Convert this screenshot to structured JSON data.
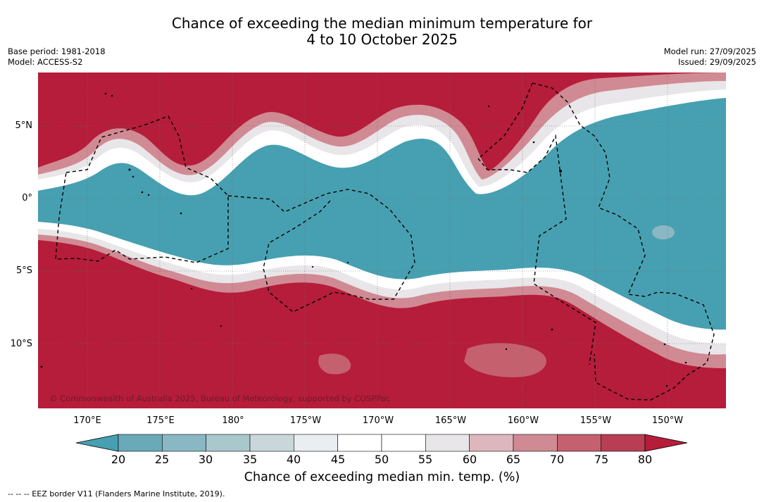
{
  "title": {
    "line1": "Chance of exceeding the median minimum temperature for",
    "line2": "4 to 10 October 2025"
  },
  "meta": {
    "base_period": "Base period: 1981-2018",
    "model": "Model: ACCESS-S2",
    "model_run": "Model run: 27/09/2025",
    "issued": "Issued: 29/09/2025"
  },
  "map": {
    "lat_labels": [
      "5°N",
      "0°",
      "5°S",
      "10°S"
    ],
    "lon_labels": [
      "170°E",
      "175°E",
      "180°",
      "175°W",
      "170°W",
      "165°W",
      "160°W",
      "155°W",
      "150°W"
    ],
    "credit": "© Commonwealth of Australia 2025, Bureau of Meteorology, supported by COSPPac",
    "colors": {
      "high": "#b51d3a",
      "low": "#47a0b1",
      "eez": "#000000"
    }
  },
  "colorbar": {
    "ticks": [
      "20",
      "25",
      "30",
      "35",
      "40",
      "45",
      "50",
      "55",
      "60",
      "65",
      "70",
      "75",
      "80"
    ],
    "colors": [
      "#47a0b1",
      "#6aa9b7",
      "#89b8c4",
      "#a9c8cc",
      "#c9d6da",
      "#e8eef1",
      "#ffffff",
      "#ffffff",
      "#e8e6e8",
      "#deb6bd",
      "#d08a93",
      "#c5606f",
      "#b83e54",
      "#b51d3a"
    ],
    "label": "Chance of exceeding median min. temp. (%)"
  },
  "footnote": "--  --  -- EEZ border V11 (Flanders Marine Institute, 2019)."
}
